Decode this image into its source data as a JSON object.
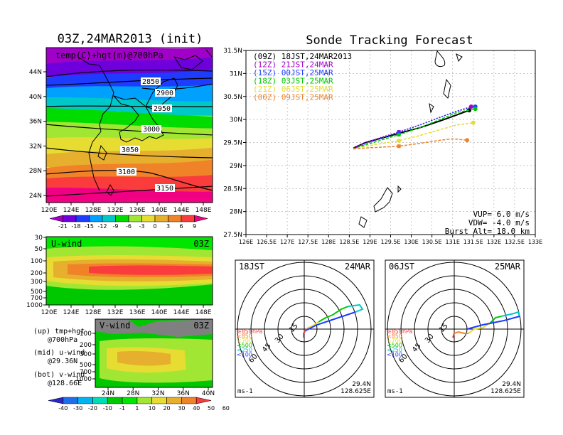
{
  "colors": {
    "scale_temp": [
      "#a000c8",
      "#6e00dc",
      "#1e3cff",
      "#00a0ff",
      "#00c8c8",
      "#00dc00",
      "#a0e632",
      "#e6dc32",
      "#e6af2d",
      "#f08228",
      "#fa3c3c",
      "#f00082"
    ],
    "scale_wind": [
      "#2828c8",
      "#1e6eeb",
      "#00b4f0",
      "#00dcb4",
      "#00c800",
      "#00e600",
      "#a0e632",
      "#e6dc32",
      "#e6af2d",
      "#f08228",
      "#fa3c3c"
    ],
    "line_09Z": "#000000",
    "line_12Z": "#a000c8",
    "line_15Z": "#1e3cff",
    "line_18Z": "#00c800",
    "line_21Z": "#e6dc32",
    "line_00Z": "#f08228"
  },
  "chart_data": [
    {
      "type": "heatmap",
      "panel": "temperature map",
      "title": "03Z,24MAR2013 (init)",
      "inner_label": "temp(C)+hgt(m)@700hPa",
      "x_ticks": [
        "120E",
        "124E",
        "128E",
        "132E",
        "136E",
        "140E",
        "144E",
        "148E"
      ],
      "y_ticks": [
        "44N",
        "40N",
        "36N",
        "32N",
        "28N",
        "24N"
      ],
      "contours": [
        "2850",
        "2900",
        "2950",
        "3000",
        "3050",
        "3100",
        "3150"
      ],
      "colorbar_labels": [
        "-21",
        "-18",
        "-15",
        "-12",
        "-9",
        "-6",
        "-3",
        "0",
        "3",
        "6",
        "9"
      ]
    },
    {
      "type": "heatmap",
      "panel": "u-wind cross section",
      "inner_label": "U-wind",
      "time_label": "03Z",
      "y_ticks": [
        "30",
        "50",
        "100",
        "200",
        "300",
        "500",
        "700",
        "1000"
      ],
      "x_ticks": [
        "120E",
        "124E",
        "128E",
        "132E",
        "136E",
        "140E",
        "144E",
        "148E"
      ]
    },
    {
      "type": "heatmap",
      "panel": "v-wind cross section",
      "inner_label": "V-wind",
      "time_label": "03Z",
      "y_ticks": [
        "100",
        "200",
        "300",
        "500",
        "700",
        "1000"
      ],
      "x_ticks": [
        "24N",
        "28N",
        "32N",
        "36N",
        "40N"
      ],
      "colorbar_labels": [
        "-40",
        "-30",
        "-20",
        "-10",
        "-1",
        "1",
        "10",
        "20",
        "30",
        "40",
        "50",
        "60"
      ]
    },
    {
      "type": "line",
      "panel": "sonde track",
      "title": "Sonde Tracking Forecast",
      "x_ticks": [
        "126E",
        "126.5E",
        "127E",
        "127.5E",
        "128E",
        "128.5E",
        "129E",
        "129.5E",
        "130E",
        "130.5E",
        "131E",
        "131.5E",
        "132E",
        "132.5E",
        "133E"
      ],
      "y_ticks": [
        "31.5N",
        "31N",
        "30.5N",
        "30N",
        "29.5N",
        "29N",
        "28.5N",
        "28N",
        "27.5N"
      ],
      "xlim": [
        126,
        133
      ],
      "ylim": [
        27.5,
        31.5
      ],
      "series": [
        {
          "name": "(09Z) 18JST,24MAR2013",
          "x": [
            128.6,
            128.9,
            129.3,
            129.7,
            130.2,
            130.7,
            131.1,
            131.4
          ],
          "y": [
            29.38,
            29.5,
            29.6,
            29.7,
            29.82,
            29.97,
            30.1,
            30.2
          ]
        },
        {
          "name": "(12Z) 21JST,24MAR",
          "x": [
            128.6,
            128.9,
            129.3,
            129.7,
            130.2,
            130.7,
            131.1,
            131.45
          ],
          "y": [
            29.38,
            29.5,
            29.62,
            29.73,
            29.88,
            30.05,
            30.18,
            30.28
          ]
        },
        {
          "name": "(15Z) 00JST,25MAR",
          "x": [
            128.6,
            128.9,
            129.3,
            129.7,
            130.2,
            130.7,
            131.1,
            131.55
          ],
          "y": [
            29.36,
            29.48,
            29.6,
            29.72,
            29.88,
            30.05,
            30.18,
            30.28
          ]
        },
        {
          "name": "(18Z) 03JST,25MAR",
          "x": [
            128.6,
            128.9,
            129.3,
            129.7,
            130.2,
            130.7,
            131.1,
            131.55
          ],
          "y": [
            29.36,
            29.45,
            29.56,
            29.67,
            29.82,
            30.0,
            30.15,
            30.23
          ]
        },
        {
          "name": "(21Z) 06JST,25MAR",
          "x": [
            128.6,
            128.9,
            129.3,
            129.7,
            130.2,
            130.7,
            131.1,
            131.5
          ],
          "y": [
            29.36,
            29.42,
            29.48,
            29.54,
            29.65,
            29.78,
            29.88,
            29.93
          ]
        },
        {
          "name": "(00Z) 09JST,25MAR",
          "x": [
            128.6,
            128.9,
            129.3,
            129.7,
            130.2,
            130.7,
            131.0,
            131.35
          ],
          "y": [
            29.36,
            29.38,
            29.4,
            29.42,
            29.48,
            29.55,
            29.58,
            29.55
          ]
        }
      ],
      "info_lines": [
        "VUP= 6.0 m/s",
        "VDW= -4.0 m/s",
        "Burst Alt= 18.0 km"
      ]
    },
    {
      "type": "line",
      "panel": "hodograph left",
      "time_label": "18JST",
      "date_label": "24MAR",
      "ring_labels": [
        "15",
        "30",
        "45",
        "60"
      ],
      "level_labels": [
        "≥850hPa",
        "<850",
        "<700",
        "<500",
        "<250",
        "<100"
      ],
      "unit_label": "ms-1",
      "lat_label": "29.4N",
      "lon_label": "128.625E"
    },
    {
      "type": "line",
      "panel": "hodograph right",
      "time_label": "06JST",
      "date_label": "25MAR",
      "ring_labels": [
        "15",
        "30",
        "45",
        "60"
      ],
      "level_labels": [
        "≥850hPa",
        "<850",
        "<700",
        "<500",
        "<250",
        "<100"
      ],
      "unit_label": "ms-1",
      "lat_label": "29.4N",
      "lon_label": "128.625E"
    }
  ],
  "legend_labels": [
    {
      "text": "(up) tmp+hgt"
    },
    {
      "text": "@700hPa"
    },
    {
      "text": "(mid) u-wind"
    },
    {
      "text": "@29.36N"
    },
    {
      "text": "(bot) v-wind"
    },
    {
      "text": "@128.66E"
    }
  ]
}
